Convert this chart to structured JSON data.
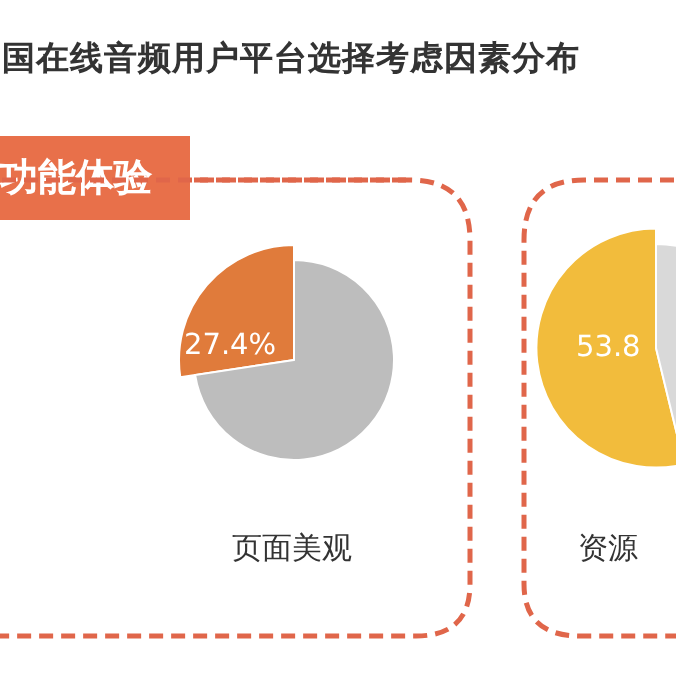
{
  "chart_data": [
    {
      "type": "other",
      "title": "国在线音频用户平台选择考虑因素分布",
      "annotations": [
        "功能体验"
      ]
    },
    {
      "type": "pie",
      "title": "页面美观",
      "categories": [
        null,
        null
      ],
      "values": [
        27.4,
        72.6
      ],
      "colors": [
        "#e07b3b",
        "#bdbdbd"
      ],
      "value_labels": [
        "27.4%",
        null
      ]
    },
    {
      "type": "pie",
      "title": "资源",
      "categories": [
        null,
        null
      ],
      "values": [
        53.8,
        46.2
      ],
      "colors": [
        "#f2bc3c",
        "#d9d9d9"
      ],
      "value_labels": [
        "53.8",
        null
      ]
    }
  ]
}
